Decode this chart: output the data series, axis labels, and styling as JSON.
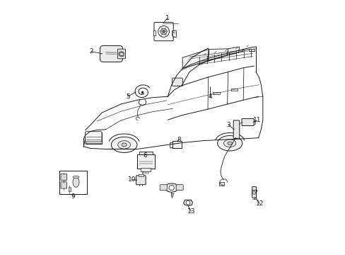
{
  "bg_color": "#ffffff",
  "line_color": "#1a1a1a",
  "figsize": [
    4.89,
    3.6
  ],
  "dpi": 100,
  "callouts": {
    "1": {
      "lp": [
        0.478,
        0.932
      ],
      "cp": [
        0.462,
        0.895
      ],
      "ha": "center"
    },
    "2": {
      "lp": [
        0.178,
        0.798
      ],
      "cp": [
        0.222,
        0.782
      ],
      "ha": "center"
    },
    "3": {
      "lp": [
        0.718,
        0.508
      ],
      "cp": [
        0.738,
        0.488
      ],
      "ha": "left"
    },
    "4": {
      "lp": [
        0.648,
        0.618
      ],
      "cp": [
        0.648,
        0.658
      ],
      "ha": "center"
    },
    "5": {
      "lp": [
        0.322,
        0.618
      ],
      "cp": [
        0.352,
        0.618
      ],
      "ha": "right"
    },
    "6": {
      "lp": [
        0.388,
        0.388
      ],
      "cp": [
        0.375,
        0.362
      ],
      "ha": "center"
    },
    "7": {
      "lp": [
        0.498,
        0.225
      ],
      "cp": [
        0.498,
        0.252
      ],
      "ha": "center"
    },
    "8": {
      "lp": [
        0.528,
        0.452
      ],
      "cp": [
        0.515,
        0.432
      ],
      "ha": "center"
    },
    "9": {
      "lp": [
        0.155,
        0.228
      ],
      "cp": [
        0.155,
        0.248
      ],
      "ha": "center"
    },
    "10": {
      "lp": [
        0.338,
        0.295
      ],
      "cp": [
        0.365,
        0.295
      ],
      "ha": "right"
    },
    "11": {
      "lp": [
        0.832,
        0.528
      ],
      "cp": [
        0.808,
        0.518
      ],
      "ha": "left"
    },
    "12": {
      "lp": [
        0.842,
        0.198
      ],
      "cp": [
        0.825,
        0.225
      ],
      "ha": "center"
    },
    "13": {
      "lp": [
        0.572,
        0.168
      ],
      "cp": [
        0.558,
        0.195
      ],
      "ha": "center"
    }
  }
}
